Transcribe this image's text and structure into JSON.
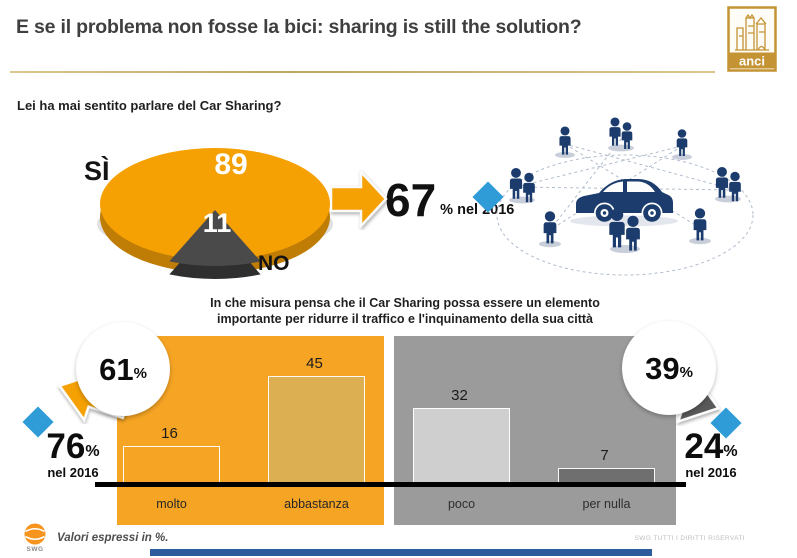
{
  "header": {
    "title": "E se il problema non fosse la bici: sharing is still the solution?",
    "logo_text": "anci"
  },
  "pie_section": {
    "question": "Lei ha mai sentito parlare del Car Sharing?",
    "yes_label": "SÌ",
    "yes_value": "89",
    "no_label": "NO",
    "no_value": "11",
    "callout_value": "67",
    "callout_suffix": "% nel 2016"
  },
  "bar_section": {
    "question_line1": "In che misura pensa che il Car Sharing possa essere un elemento",
    "question_line2": "importante per ridurre il traffico e l'inquinamento della sua città",
    "left": {
      "pct": "61",
      "pct_sign": "%",
      "prev_value": "76",
      "prev_sign": "%",
      "prev_label": "nel 2016",
      "items": [
        {
          "label": "molto",
          "value": "16"
        },
        {
          "label": "abbastanza",
          "value": "45"
        }
      ]
    },
    "right": {
      "pct": "39",
      "pct_sign": "%",
      "prev_value": "24",
      "prev_sign": "%",
      "prev_label": "nel 2016",
      "items": [
        {
          "label": "poco",
          "value": "32"
        },
        {
          "label": "per nulla",
          "value": "7"
        }
      ]
    }
  },
  "footer": {
    "note": "Valori espressi in %.",
    "brand": "SWG",
    "copyright": "SWG TUTTI I DIRITTI RISERVATI"
  },
  "colors": {
    "orange": "#F5A423",
    "pie_orange": "#F5A104",
    "pie_rim": "#BF7D06",
    "tan_bar": "#DCAF53",
    "gray_panel": "#9B9B9B",
    "light_gray_bar": "#CFCFCF",
    "dark_gray_bar": "#6F6F6F",
    "wedge_gray": "#4A4A4A",
    "blue_diamond": "#2F9CD8",
    "navy": "#1B3C6D",
    "gold": "#C49434"
  },
  "chart_data": [
    {
      "type": "pie",
      "title": "Lei ha mai sentito parlare del Car Sharing?",
      "labels": [
        "SÌ",
        "NO"
      ],
      "values": [
        89,
        11
      ],
      "colors": [
        "#F5A104",
        "#4A4A4A"
      ],
      "annotation": {
        "value": 67,
        "label": "% nel 2016"
      }
    },
    {
      "type": "bar",
      "title": "In che misura pensa che il Car Sharing possa essere un elemento importante per ridurre il traffico e l'inquinamento della sua città",
      "categories": [
        "molto",
        "abbastanza",
        "poco",
        "per nulla"
      ],
      "values": [
        16,
        45,
        32,
        7
      ],
      "group_totals": [
        {
          "group": "molto + abbastanza",
          "value": 61,
          "nel_2016": 76
        },
        {
          "group": "poco + per nulla",
          "value": 39,
          "nel_2016": 24
        }
      ],
      "ylim": [
        0,
        50
      ],
      "value_labels": true,
      "legend": "none",
      "grid": false
    }
  ]
}
